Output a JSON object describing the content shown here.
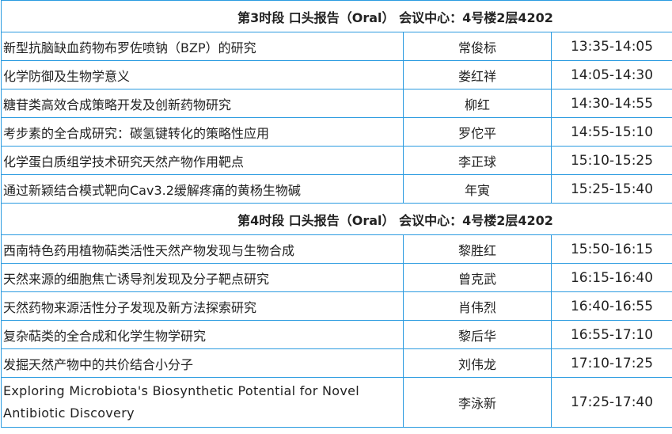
{
  "sections": [
    {
      "title": "第3时段 口头报告（Oral） 会议中心：4号楼2层4202",
      "rows": [
        {
          "topic": "新型抗脑缺血药物布罗佐喷钠（BZP）的研究",
          "speaker": "常俊标",
          "time": "13:35-14:05"
        },
        {
          "topic": "化学防御及生物学意义",
          "speaker": "娄红祥",
          "time": "14:05-14:30"
        },
        {
          "topic": "糖苷类高效合成策略开发及创新药物研究",
          "speaker": "柳红",
          "time": "14:30-14:55"
        },
        {
          "topic": "考步素的全合成研究：碳氢键转化的策略性应用",
          "speaker": "罗佗平",
          "time": "14:55-15:10"
        },
        {
          "topic": "化学蛋白质组学技术研究天然产物作用靶点",
          "speaker": "李正球",
          "time": "15:10-15:25"
        },
        {
          "topic": "通过新颖结合模式靶向Cav3.2缓解疼痛的黄杨生物碱",
          "speaker": "年寅",
          "time": "15:25-15:40"
        }
      ]
    },
    {
      "title": "第4时段 口头报告（Oral） 会议中心：4号楼2层4202",
      "rows": [
        {
          "topic": "西南特色药用植物萜类活性天然产物发现与生物合成",
          "speaker": "黎胜红",
          "time": "15:50-16:15"
        },
        {
          "topic": "天然来源的细胞焦亡诱导剂发现及分子靶点研究",
          "speaker": "曾克武",
          "time": "16:15-16:40"
        },
        {
          "topic": "天然药物来源活性分子发现及新方法探索研究",
          "speaker": "肖伟烈",
          "time": "16:40-16:55"
        },
        {
          "topic": "复杂萜类的全合成和化学生物学研究",
          "speaker": "黎后华",
          "time": "16:55-17:10"
        },
        {
          "topic": "发掘天然产物中的共价结合小分子",
          "speaker": "刘伟龙",
          "time": "17:10-17:25"
        },
        {
          "topic": "Exploring Microbiota's Biosynthetic Potential for Novel Antibiotic Discovery",
          "speaker": "李泳新",
          "time": "17:25-17:40"
        }
      ]
    }
  ]
}
